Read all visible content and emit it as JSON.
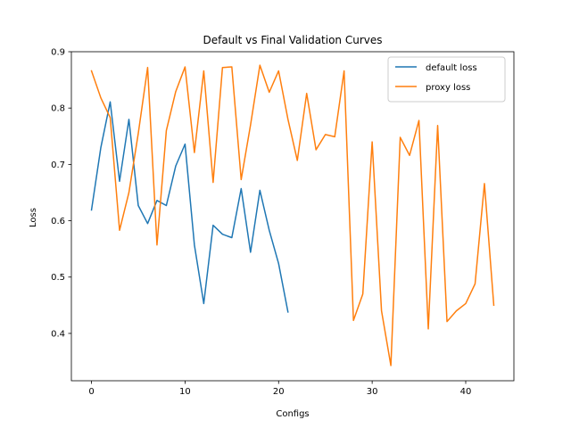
{
  "chart_data": {
    "type": "line",
    "title": "Default vs Final Validation Curves",
    "xlabel": "Configs",
    "ylabel": "Loss",
    "xlim": [
      -2.15,
      45.15
    ],
    "ylim": [
      0.316,
      0.9
    ],
    "xticks": [
      0,
      10,
      20,
      30,
      40
    ],
    "yticks": [
      0.4,
      0.5,
      0.6,
      0.7,
      0.8,
      0.9
    ],
    "xtick_labels": [
      "0",
      "10",
      "20",
      "30",
      "40"
    ],
    "ytick_labels": [
      "0.4",
      "0.5",
      "0.6",
      "0.7",
      "0.8",
      "0.9"
    ],
    "grid": false,
    "legend_position": "top-right",
    "series": [
      {
        "name": "default loss",
        "color": "#1f77b4",
        "x": [
          0,
          1,
          2,
          3,
          4,
          5,
          6,
          7,
          8,
          9,
          10,
          11,
          12,
          13,
          14,
          15,
          16,
          17,
          18,
          19,
          20,
          21
        ],
        "values": [
          0.619,
          0.73,
          0.811,
          0.67,
          0.78,
          0.627,
          0.595,
          0.636,
          0.627,
          0.697,
          0.736,
          0.557,
          0.453,
          0.592,
          0.576,
          0.57,
          0.657,
          0.544,
          0.654,
          0.583,
          0.524,
          0.438
        ]
      },
      {
        "name": "proxy loss",
        "color": "#ff7f0e",
        "x": [
          0,
          1,
          2,
          3,
          4,
          5,
          6,
          7,
          8,
          9,
          10,
          11,
          12,
          13,
          14,
          15,
          16,
          17,
          18,
          19,
          20,
          21,
          22,
          23,
          24,
          25,
          26,
          27,
          28,
          29,
          30,
          31,
          32,
          33,
          34,
          35,
          36,
          37,
          38,
          39,
          40,
          41,
          42,
          43
        ],
        "values": [
          0.866,
          0.818,
          0.783,
          0.583,
          0.65,
          0.755,
          0.872,
          0.557,
          0.76,
          0.829,
          0.873,
          0.721,
          0.866,
          0.668,
          0.872,
          0.873,
          0.673,
          0.77,
          0.876,
          0.828,
          0.866,
          0.78,
          0.707,
          0.826,
          0.726,
          0.753,
          0.749,
          0.866,
          0.423,
          0.47,
          0.74,
          0.44,
          0.343,
          0.748,
          0.716,
          0.778,
          0.408,
          0.769,
          0.421,
          0.44,
          0.453,
          0.488,
          0.666,
          0.45
        ]
      }
    ]
  }
}
